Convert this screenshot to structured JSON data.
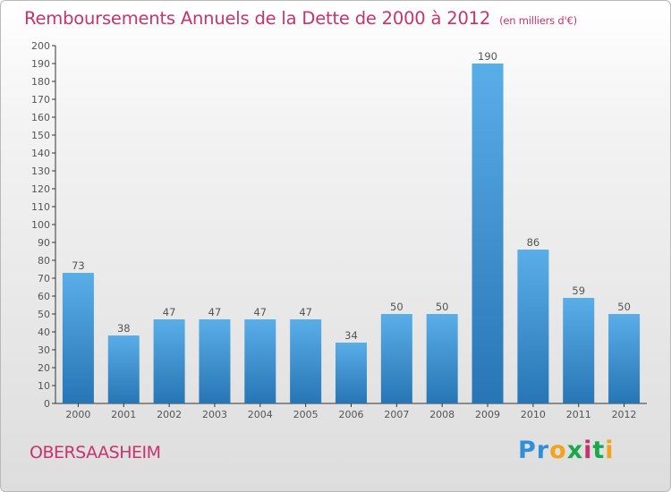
{
  "header": {
    "title": "Remboursements Annuels de la Dette de 2000 à 2012",
    "unit": "(en milliers d'€)"
  },
  "footer": {
    "commune": "OBERSAASHEIM",
    "logo": "Proxiti"
  },
  "colors": {
    "title": "#c8336e",
    "bar_light": "#5aaee8",
    "bar_dark": "#2775b5",
    "axis": "#333333",
    "grid_tick": "#555555"
  },
  "chart_data": {
    "type": "bar",
    "categories": [
      "2000",
      "2001",
      "2002",
      "2003",
      "2004",
      "2005",
      "2006",
      "2007",
      "2008",
      "2009",
      "2010",
      "2011",
      "2012"
    ],
    "values": [
      73,
      38,
      47,
      47,
      47,
      47,
      34,
      50,
      50,
      190,
      86,
      59,
      50
    ],
    "data_labels": [
      "73",
      "38",
      "47",
      "47",
      "47",
      "47",
      "34",
      "50",
      "50",
      "190",
      "86",
      "59",
      "50"
    ],
    "ylim": [
      0,
      200
    ],
    "yticks": [
      "0",
      "10",
      "20",
      "30",
      "40",
      "50",
      "60",
      "70",
      "80",
      "90",
      "100",
      "110",
      "120",
      "130",
      "140",
      "150",
      "160",
      "170",
      "180",
      "190",
      "200"
    ],
    "grid": false,
    "legend": "none"
  }
}
